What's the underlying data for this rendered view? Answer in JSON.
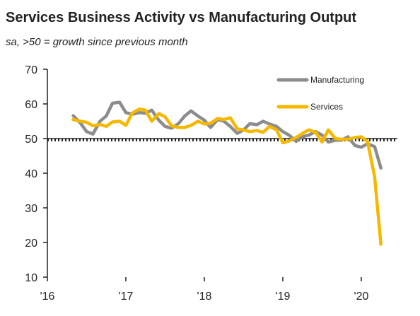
{
  "chart_data": {
    "type": "line",
    "title": "Services Business Activity vs Manufacturing Output",
    "subtitle": "sa, >50 = growth since previous month",
    "xlabel": "",
    "ylabel": "",
    "ylim": [
      10,
      70
    ],
    "yticks": [
      10,
      20,
      30,
      40,
      50,
      60,
      70
    ],
    "xlim": [
      2016.0,
      2020.46
    ],
    "xticks": [
      {
        "label": "'16",
        "value": 2016.0
      },
      {
        "label": "'17",
        "value": 2017.0
      },
      {
        "label": "'18",
        "value": 2018.0
      },
      {
        "label": "'19",
        "value": 2019.0
      },
      {
        "label": "'20",
        "value": 2020.0
      }
    ],
    "reference_line": {
      "y": 50,
      "style": "dotted"
    },
    "grid": false,
    "legend_position": "top-right",
    "series": [
      {
        "name": "Manufacturing",
        "color": "#8c8c8c",
        "x": [
          2016.33,
          2016.42,
          2016.5,
          2016.58,
          2016.67,
          2016.75,
          2016.83,
          2016.92,
          2017.0,
          2017.08,
          2017.17,
          2017.25,
          2017.33,
          2017.42,
          2017.5,
          2017.58,
          2017.67,
          2017.75,
          2017.83,
          2017.92,
          2018.0,
          2018.08,
          2018.17,
          2018.25,
          2018.33,
          2018.42,
          2018.5,
          2018.58,
          2018.67,
          2018.75,
          2018.83,
          2018.92,
          2019.0,
          2019.08,
          2019.17,
          2019.25,
          2019.33,
          2019.42,
          2019.5,
          2019.58,
          2019.67,
          2019.75,
          2019.83,
          2019.92,
          2020.0,
          2020.08,
          2020.17,
          2020.25
        ],
        "y": [
          56.6,
          54.5,
          52.0,
          51.3,
          55.0,
          56.5,
          60.2,
          60.5,
          57.5,
          57.0,
          57.5,
          57.3,
          58.2,
          55.3,
          53.5,
          53.0,
          54.3,
          56.5,
          58.0,
          56.5,
          55.3,
          53.2,
          55.5,
          55.0,
          53.5,
          51.5,
          52.5,
          54.3,
          54.0,
          55.0,
          54.2,
          53.5,
          52.0,
          51.0,
          49.2,
          50.5,
          51.0,
          52.0,
          51.0,
          49.0,
          49.5,
          49.5,
          50.5,
          48.0,
          47.5,
          48.5,
          47.7,
          41.5
        ]
      },
      {
        "name": "Services",
        "color": "#f5b800",
        "x": [
          2016.33,
          2016.42,
          2016.5,
          2016.58,
          2016.67,
          2016.75,
          2016.83,
          2016.92,
          2017.0,
          2017.08,
          2017.17,
          2017.25,
          2017.33,
          2017.42,
          2017.5,
          2017.58,
          2017.67,
          2017.75,
          2017.83,
          2017.92,
          2018.0,
          2018.08,
          2018.17,
          2018.25,
          2018.33,
          2018.42,
          2018.5,
          2018.58,
          2018.67,
          2018.75,
          2018.83,
          2018.92,
          2019.0,
          2019.08,
          2019.17,
          2019.25,
          2019.33,
          2019.42,
          2019.5,
          2019.58,
          2019.67,
          2019.75,
          2019.83,
          2019.92,
          2020.0,
          2020.08,
          2020.17,
          2020.25
        ],
        "y": [
          55.5,
          55.0,
          54.7,
          53.7,
          54.1,
          53.5,
          54.8,
          55.0,
          53.8,
          57.3,
          58.5,
          58.2,
          55.0,
          57.2,
          56.3,
          53.7,
          53.2,
          53.2,
          53.8,
          55.0,
          54.2,
          54.4,
          55.8,
          55.5,
          56.0,
          52.8,
          52.5,
          52.0,
          52.3,
          51.8,
          53.5,
          52.5,
          48.8,
          49.3,
          50.3,
          51.5,
          52.5,
          51.8,
          49.0,
          52.5,
          50.0,
          49.8,
          49.8,
          50.3,
          50.5,
          49.2,
          39.0,
          19.5
        ]
      }
    ]
  }
}
